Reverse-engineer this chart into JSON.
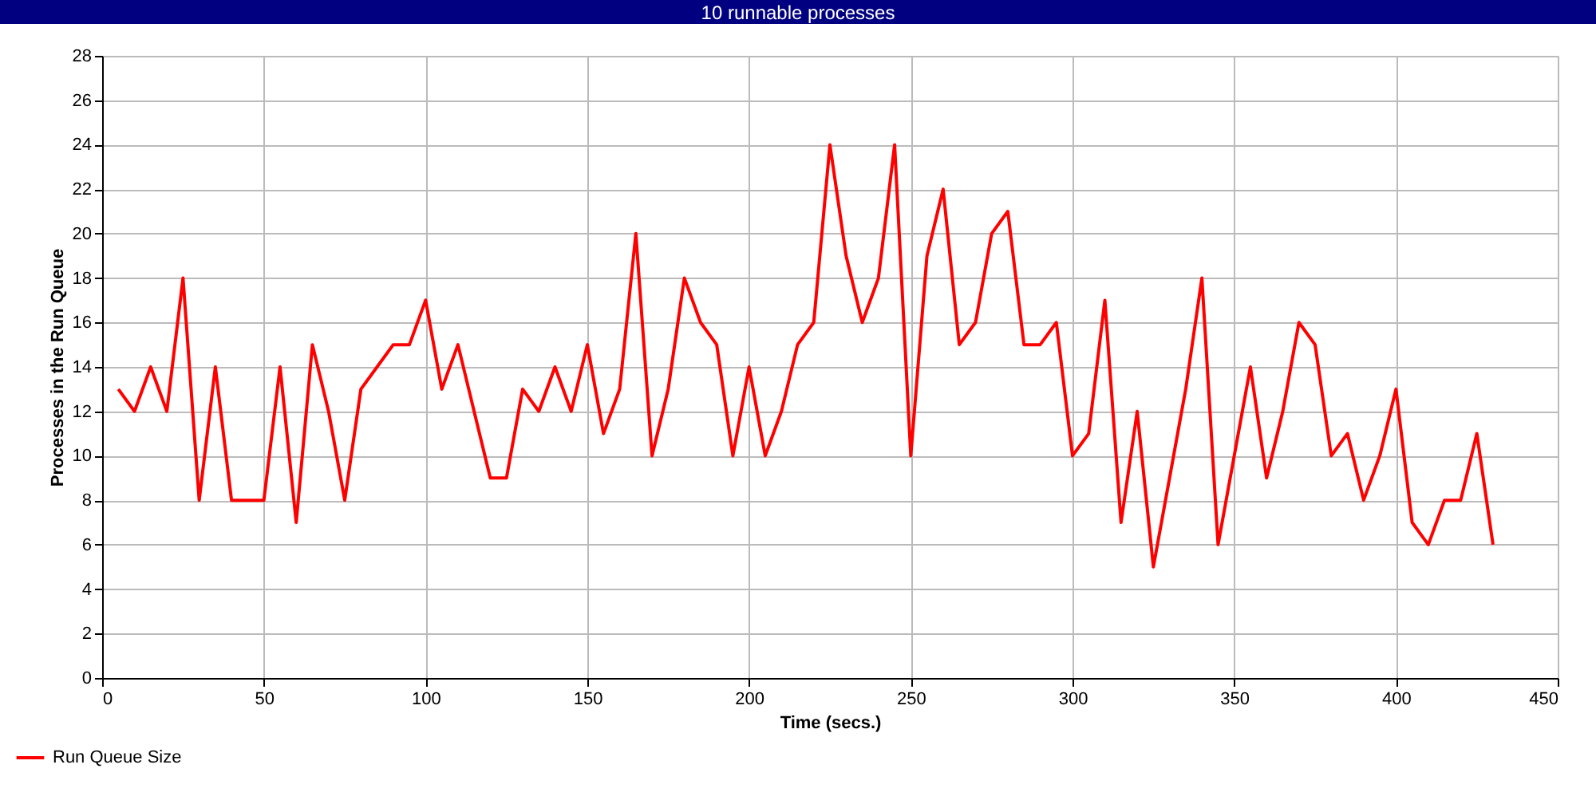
{
  "chart_data": {
    "type": "line",
    "title": "10 runnable processes",
    "xlabel": "Time (secs.)",
    "ylabel": "Processes in the Run Queue",
    "x": [
      5,
      10,
      15,
      20,
      25,
      30,
      35,
      40,
      45,
      50,
      55,
      60,
      65,
      70,
      75,
      80,
      85,
      90,
      95,
      100,
      105,
      110,
      115,
      120,
      125,
      130,
      135,
      140,
      145,
      150,
      155,
      160,
      165,
      170,
      175,
      180,
      185,
      190,
      195,
      200,
      205,
      210,
      215,
      220,
      225,
      230,
      235,
      240,
      245,
      250,
      255,
      260,
      265,
      270,
      275,
      280,
      285,
      290,
      295,
      300,
      305,
      310,
      315,
      320,
      325,
      330,
      335,
      340,
      345,
      350,
      355,
      360,
      365,
      370,
      375,
      380,
      385,
      390,
      395,
      400,
      405,
      410,
      415,
      420,
      425,
      430
    ],
    "series": [
      {
        "name": "Run Queue Size",
        "color": "#ff0000",
        "values": [
          13,
          12,
          14,
          12,
          18,
          8,
          14,
          8,
          8,
          8,
          14,
          7,
          15,
          12,
          8,
          13,
          14,
          15,
          15,
          17,
          13,
          15,
          12,
          9,
          9,
          13,
          12,
          14,
          12,
          15,
          11,
          13,
          20,
          10,
          13,
          18,
          16,
          15,
          10,
          14,
          10,
          12,
          15,
          16,
          24,
          19,
          16,
          18,
          24,
          10,
          19,
          22,
          15,
          16,
          20,
          21,
          15,
          15,
          16,
          10,
          11,
          17,
          7,
          12,
          5,
          9,
          13,
          18,
          6,
          10,
          14,
          9,
          12,
          16,
          15,
          10,
          11,
          8,
          10,
          13,
          7,
          6,
          8,
          8,
          11,
          6
        ]
      }
    ],
    "xlim": [
      0,
      450
    ],
    "xticks": [
      0,
      50,
      100,
      150,
      200,
      250,
      300,
      350,
      400,
      450
    ],
    "ylim": [
      0,
      28
    ],
    "yticks": [
      0,
      2,
      4,
      6,
      8,
      10,
      12,
      14,
      16,
      18,
      20,
      22,
      24,
      26,
      28
    ],
    "grid": true,
    "legend": "bottom left",
    "marker": "none",
    "line_style": "solid"
  }
}
